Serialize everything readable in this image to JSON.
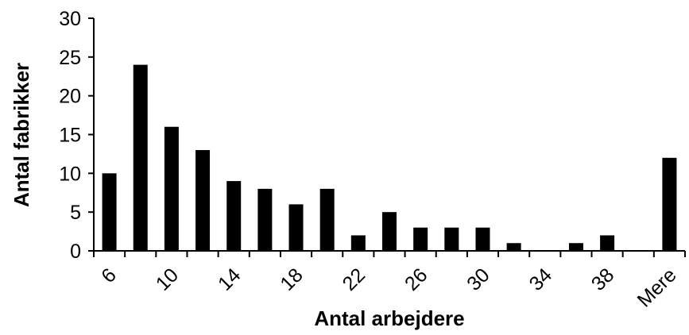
{
  "chart_data": {
    "type": "bar",
    "xlabel": "Antal arbejdere",
    "ylabel": "Antal fabrikker",
    "ylim": [
      0,
      30
    ],
    "yticks": [
      "0",
      "5",
      "10",
      "15",
      "20",
      "25",
      "30"
    ],
    "xtick_labels": [
      "6",
      "10",
      "14",
      "18",
      "22",
      "26",
      "30",
      "34",
      "38",
      "Mere"
    ],
    "categories": [
      "6",
      "8",
      "10",
      "12",
      "14",
      "16",
      "18",
      "20",
      "22",
      "24",
      "26",
      "28",
      "30",
      "32",
      "34",
      "36",
      "38",
      "40",
      "Mere"
    ],
    "values": [
      10,
      24,
      16,
      13,
      9,
      8,
      6,
      8,
      2,
      5,
      3,
      3,
      3,
      1,
      0,
      1,
      2,
      0,
      12
    ],
    "bar_color": "#000000",
    "grid": false,
    "legend": "none"
  }
}
